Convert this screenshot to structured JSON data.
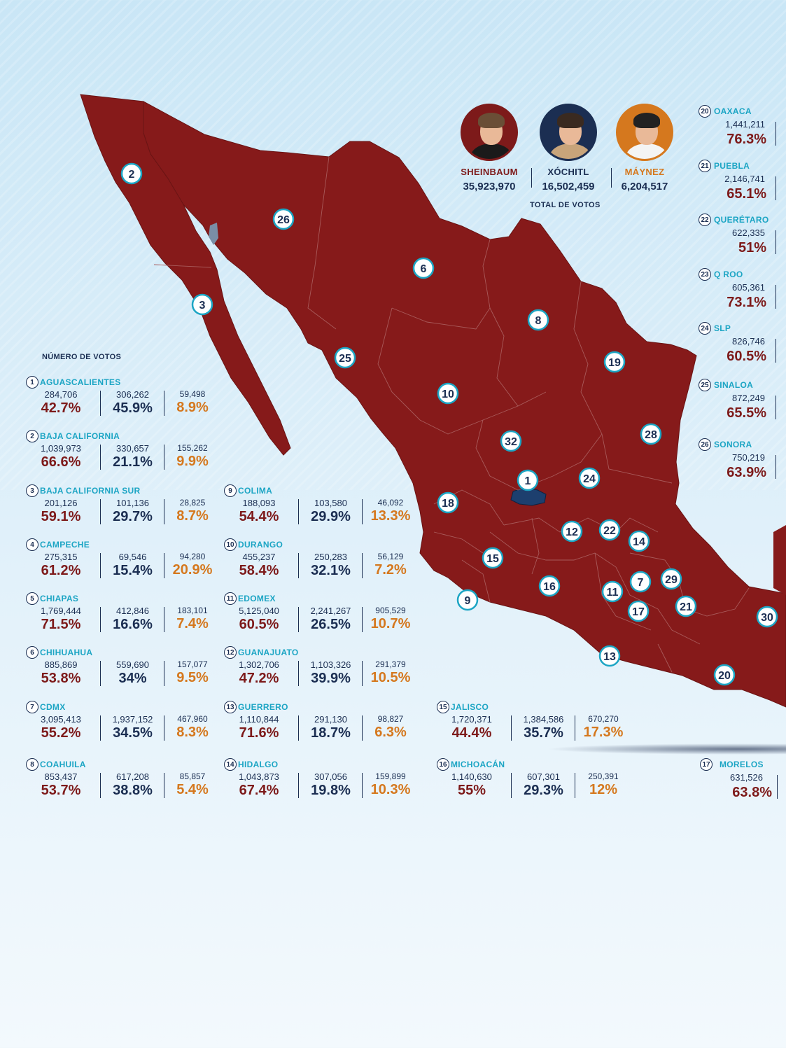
{
  "colors": {
    "sheinbaum": "#7d1a1a",
    "xochitl": "#1b2e52",
    "maynez": "#d5781e",
    "state_name": "#1ca5c4",
    "map_fill": "#861a1a",
    "xochitl_state": "#1d3f6e"
  },
  "candidates": [
    {
      "name": "SHEINBAUM",
      "votes": "35,923,970",
      "color": "#7d1a1a"
    },
    {
      "name": "XÓCHITL",
      "votes": "16,502,459",
      "color": "#1b2e52"
    },
    {
      "name": "MÁYNEZ",
      "votes": "6,204,517",
      "color": "#d5781e"
    }
  ],
  "total_label": "TOTAL DE VOTOS",
  "legend_label": "NÚMERO DE VOTOS",
  "states": [
    {
      "num": "1",
      "name": "AGUASCALIENTES",
      "v": [
        "284,706",
        "306,262",
        "59,498"
      ],
      "p": [
        "42.7%",
        "45.9%",
        "8.9%"
      ]
    },
    {
      "num": "2",
      "name": "BAJA CALIFORNIA",
      "v": [
        "1,039,973",
        "330,657",
        "155,262"
      ],
      "p": [
        "66.6%",
        "21.1%",
        "9.9%"
      ]
    },
    {
      "num": "3",
      "name": "BAJA CALIFORNIA SUR",
      "v": [
        "201,126",
        "101,136",
        "28,825"
      ],
      "p": [
        "59.1%",
        "29.7%",
        "8.7%"
      ]
    },
    {
      "num": "4",
      "name": "CAMPECHE",
      "v": [
        "275,315",
        "69,546",
        "94,280"
      ],
      "p": [
        "61.2%",
        "15.4%",
        "20.9%"
      ]
    },
    {
      "num": "5",
      "name": "CHIAPAS",
      "v": [
        "1,769,444",
        "412,846",
        "183,101"
      ],
      "p": [
        "71.5%",
        "16.6%",
        "7.4%"
      ]
    },
    {
      "num": "6",
      "name": "CHIHUAHUA",
      "v": [
        "885,869",
        "559,690",
        "157,077"
      ],
      "p": [
        "53.8%",
        "34%",
        "9.5%"
      ]
    },
    {
      "num": "7",
      "name": "CDMX",
      "v": [
        "3,095,413",
        "1,937,152",
        "467,960"
      ],
      "p": [
        "55.2%",
        "34.5%",
        "8.3%"
      ]
    },
    {
      "num": "8",
      "name": "COAHUILA",
      "v": [
        "853,437",
        "617,208",
        "85,857"
      ],
      "p": [
        "53.7%",
        "38.8%",
        "5.4%"
      ]
    },
    {
      "num": "9",
      "name": "COLIMA",
      "v": [
        "188,093",
        "103,580",
        "46,092"
      ],
      "p": [
        "54.4%",
        "29.9%",
        "13.3%"
      ]
    },
    {
      "num": "10",
      "name": "DURANGO",
      "v": [
        "455,237",
        "250,283",
        "56,129"
      ],
      "p": [
        "58.4%",
        "32.1%",
        "7.2%"
      ]
    },
    {
      "num": "11",
      "name": "EDOMEX",
      "v": [
        "5,125,040",
        "2,241,267",
        "905,529"
      ],
      "p": [
        "60.5%",
        "26.5%",
        "10.7%"
      ]
    },
    {
      "num": "12",
      "name": "GUANAJUATO",
      "v": [
        "1,302,706",
        "1,103,326",
        "291,379"
      ],
      "p": [
        "47.2%",
        "39.9%",
        "10.5%"
      ]
    },
    {
      "num": "13",
      "name": "GUERRERO",
      "v": [
        "1,110,844",
        "291,130",
        "98,827"
      ],
      "p": [
        "71.6%",
        "18.7%",
        "6.3%"
      ]
    },
    {
      "num": "14",
      "name": "HIDALGO",
      "v": [
        "1,043,873",
        "307,056",
        "159,899"
      ],
      "p": [
        "67.4%",
        "19.8%",
        "10.3%"
      ]
    },
    {
      "num": "15",
      "name": "JALISCO",
      "v": [
        "1,720,371",
        "1,384,586",
        "670,270"
      ],
      "p": [
        "44.4%",
        "35.7%",
        "17.3%"
      ]
    },
    {
      "num": "16",
      "name": "MICHOACÁN",
      "v": [
        "1,140,630",
        "607,301",
        "250,391"
      ],
      "p": [
        "55%",
        "29.3%",
        "12%"
      ]
    }
  ],
  "right_states": [
    {
      "num": "20",
      "name": "OAXACA",
      "v": "1,441,211",
      "p": "76.3%"
    },
    {
      "num": "21",
      "name": "PUEBLA",
      "v": "2,146,741",
      "p": "65.1%"
    },
    {
      "num": "22",
      "name": "QUERÉTARO",
      "v": "622,335",
      "p": "51%"
    },
    {
      "num": "23",
      "name": "Q ROO",
      "v": "605,361",
      "p": "73.1%"
    },
    {
      "num": "24",
      "name": "SLP",
      "v": "826,746",
      "p": "60.5%"
    },
    {
      "num": "25",
      "name": "SINALOA",
      "v": "872,249",
      "p": "65.5%"
    },
    {
      "num": "26",
      "name": "SONORA",
      "v": "750,219",
      "p": "63.9%"
    },
    {
      "num": "17",
      "name": "MORELOS",
      "v": "631,526",
      "p": "63.8%"
    }
  ],
  "map_markers": [
    "2",
    "26",
    "6",
    "3",
    "8",
    "25",
    "19",
    "10",
    "28",
    "32",
    "1",
    "24",
    "18",
    "12",
    "22",
    "14",
    "15",
    "16",
    "7",
    "29",
    "11",
    "17",
    "21",
    "9",
    "30",
    "13",
    "20"
  ]
}
